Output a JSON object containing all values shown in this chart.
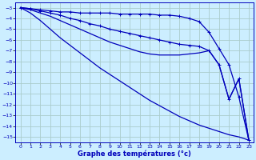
{
  "xlabel": "Graphe des températures (°c)",
  "bg_color": "#cceeff",
  "grid_color": "#aacccc",
  "line_color": "#0000bb",
  "xlim": [
    -0.5,
    23.5
  ],
  "ylim": [
    -15.5,
    -2.5
  ],
  "xticks": [
    0,
    1,
    2,
    3,
    4,
    5,
    6,
    7,
    8,
    9,
    10,
    11,
    12,
    13,
    14,
    15,
    16,
    17,
    18,
    19,
    20,
    21,
    22,
    23
  ],
  "yticks": [
    -3,
    -4,
    -5,
    -6,
    -7,
    -8,
    -9,
    -10,
    -11,
    -12,
    -13,
    -14,
    -15
  ],
  "line1_x": [
    0,
    1,
    2,
    3,
    4,
    5,
    6,
    7,
    8,
    9,
    10,
    11,
    12,
    13,
    14,
    15,
    16,
    17,
    18,
    19,
    20,
    21,
    22,
    23
  ],
  "line1_y": [
    -3.0,
    -3.1,
    -3.2,
    -3.3,
    -3.4,
    -3.4,
    -3.5,
    -3.5,
    -3.5,
    -3.5,
    -3.6,
    -3.6,
    -3.6,
    -3.6,
    -3.7,
    -3.7,
    -3.8,
    -4.0,
    -4.3,
    -5.3,
    -6.8,
    -8.3,
    -11.3,
    -15.3
  ],
  "line2_x": [
    0,
    1,
    2,
    3,
    4,
    5,
    6,
    7,
    8,
    9,
    10,
    11,
    12,
    13,
    14,
    15,
    16,
    17,
    18,
    19,
    20,
    21,
    22,
    23
  ],
  "line2_y": [
    -3.0,
    -3.1,
    -3.3,
    -3.5,
    -3.7,
    -4.0,
    -4.2,
    -4.5,
    -4.7,
    -5.0,
    -5.2,
    -5.4,
    -5.6,
    -5.8,
    -6.0,
    -6.2,
    -6.4,
    -6.5,
    -6.6,
    -7.0,
    -8.3,
    -11.5,
    -9.6,
    -15.3
  ],
  "line3_x": [
    0,
    1,
    2,
    3,
    4,
    5,
    6,
    7,
    8,
    9,
    10,
    11,
    12,
    13,
    14,
    15,
    16,
    17,
    18,
    19,
    20,
    21,
    22,
    23
  ],
  "line3_y": [
    -3.0,
    -3.2,
    -3.5,
    -3.8,
    -4.2,
    -4.6,
    -5.0,
    -5.4,
    -5.8,
    -6.2,
    -6.5,
    -6.8,
    -7.1,
    -7.3,
    -7.4,
    -7.4,
    -7.4,
    -7.3,
    -7.2,
    -7.0,
    -8.3,
    -11.5,
    -9.6,
    -15.3
  ],
  "line4_x": [
    0,
    1,
    2,
    3,
    4,
    5,
    6,
    7,
    8,
    9,
    10,
    11,
    12,
    13,
    14,
    15,
    16,
    17,
    18,
    19,
    20,
    21,
    22,
    23
  ],
  "line4_y": [
    -3.0,
    -3.5,
    -4.2,
    -5.0,
    -5.8,
    -6.5,
    -7.2,
    -7.9,
    -8.6,
    -9.2,
    -9.8,
    -10.4,
    -11.0,
    -11.6,
    -12.1,
    -12.6,
    -13.1,
    -13.5,
    -13.9,
    -14.2,
    -14.5,
    -14.8,
    -15.0,
    -15.3
  ]
}
